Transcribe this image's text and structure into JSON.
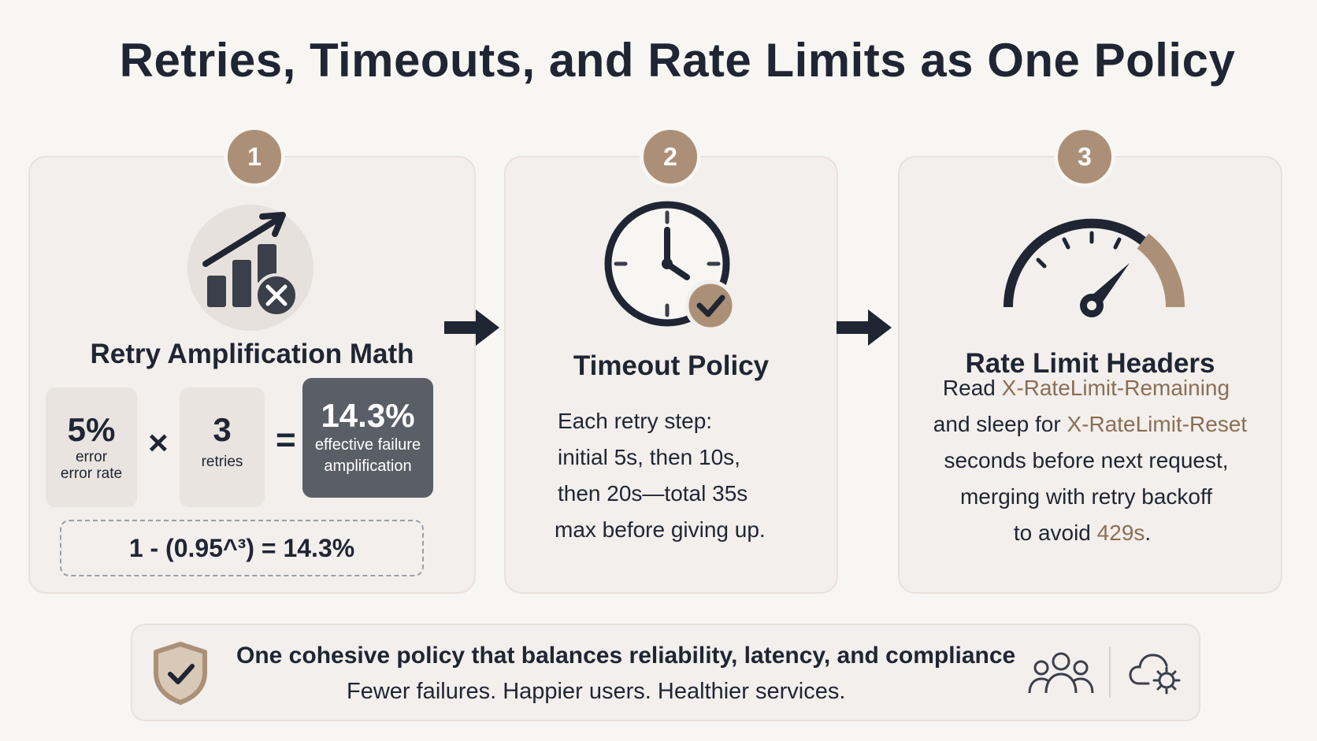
{
  "title": "Retries, Timeouts, and Rate Limits as One Policy",
  "steps": [
    {
      "number": "1",
      "title": "Retry Amplification Math",
      "icon": "bar-chart-up-arrow-x-icon",
      "terms": [
        {
          "value": "5%",
          "label": "error\nerror rate"
        },
        {
          "value": "3",
          "label": "retries"
        }
      ],
      "times_symbol": "×",
      "equals_symbol": "=",
      "result": {
        "value": "14.3%",
        "label": "effective failure\namplification"
      },
      "formula": "1 - (0.95^³) = 14.3%"
    },
    {
      "number": "2",
      "title": "Timeout Policy",
      "icon": "clock-check-icon",
      "lines": [
        "Each retry step:",
        "initial 5s, then 10s,",
        "then 20s—total 35s",
        "max before giving up."
      ]
    },
    {
      "number": "3",
      "title": "Rate Limit Headers",
      "icon": "speedometer-icon",
      "line1_pre": "Read ",
      "line1_header": "X-RateLimit-Remaining",
      "line2_pre": "and sleep for ",
      "line2_header": "X-RateLimit-Reset",
      "line3": "seconds before next request,",
      "line4": "merging with retry backoff",
      "line5_pre": "to avoid ",
      "line5_code": "429s",
      "line5_post": "."
    }
  ],
  "footer": {
    "title": "One cohesive policy that balances reliability, latency, and compliance",
    "subtitle": "Fewer failures. Happier users. Healthier services."
  },
  "colors": {
    "accent": "#ab9077",
    "accent_text": "#8b6e54",
    "dark": "#1f2533",
    "card": "#f2efec",
    "result_box": "#5a5f67"
  }
}
